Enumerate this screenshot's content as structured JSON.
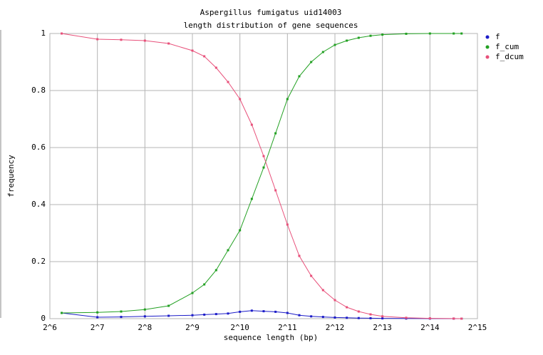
{
  "chart_data": {
    "type": "line",
    "title": "Aspergillus fumigatus uid14003",
    "subtitle": "length distribution of gene sequences",
    "x_label": "sequence length (bp)",
    "y_label": "frequency",
    "x_log_base": 2,
    "xlim": [
      64,
      32768
    ],
    "xticks": [
      {
        "value": 64,
        "label": "2^6"
      },
      {
        "value": 128,
        "label": "2^7"
      },
      {
        "value": 256,
        "label": "2^8"
      },
      {
        "value": 512,
        "label": "2^9"
      },
      {
        "value": 1024,
        "label": "2^10"
      },
      {
        "value": 2048,
        "label": "2^11"
      },
      {
        "value": 4096,
        "label": "2^12"
      },
      {
        "value": 8192,
        "label": "2^13"
      },
      {
        "value": 16384,
        "label": "2^14"
      },
      {
        "value": 32768,
        "label": "2^15"
      }
    ],
    "ylim": [
      0,
      1
    ],
    "yticks": [
      0,
      0.2,
      0.4,
      0.6,
      0.8,
      1
    ],
    "grid": true,
    "legend": "right",
    "x": [
      76,
      128,
      181,
      256,
      362,
      512,
      609,
      724,
      861,
      1024,
      1218,
      1448,
      1722,
      2048,
      2435,
      2896,
      3444,
      4096,
      4871,
      5793,
      6889,
      8192,
      11585,
      16384,
      23170,
      26000
    ],
    "series": [
      {
        "name": "f",
        "color": "#1c1cc8",
        "values": [
          0.02,
          0.005,
          0.006,
          0.008,
          0.01,
          0.012,
          0.014,
          0.016,
          0.018,
          0.024,
          0.028,
          0.026,
          0.024,
          0.02,
          0.012,
          0.008,
          0.006,
          0.004,
          0.003,
          0.002,
          0.0015,
          0.001,
          0.0005,
          0.0002,
          0.0001,
          0
        ]
      },
      {
        "name": "f_cum",
        "color": "#22a022",
        "values": [
          0.02,
          0.022,
          0.025,
          0.032,
          0.045,
          0.09,
          0.12,
          0.17,
          0.24,
          0.31,
          0.42,
          0.53,
          0.65,
          0.77,
          0.85,
          0.9,
          0.935,
          0.96,
          0.975,
          0.985,
          0.992,
          0.996,
          0.999,
          1,
          1,
          1
        ]
      },
      {
        "name": "f_dcum",
        "color": "#e8507a",
        "values": [
          1,
          0.98,
          0.978,
          0.975,
          0.965,
          0.94,
          0.92,
          0.88,
          0.83,
          0.77,
          0.68,
          0.57,
          0.45,
          0.33,
          0.22,
          0.15,
          0.1,
          0.065,
          0.04,
          0.025,
          0.015,
          0.008,
          0.003,
          0.001,
          0.0003,
          0
        ]
      }
    ]
  }
}
